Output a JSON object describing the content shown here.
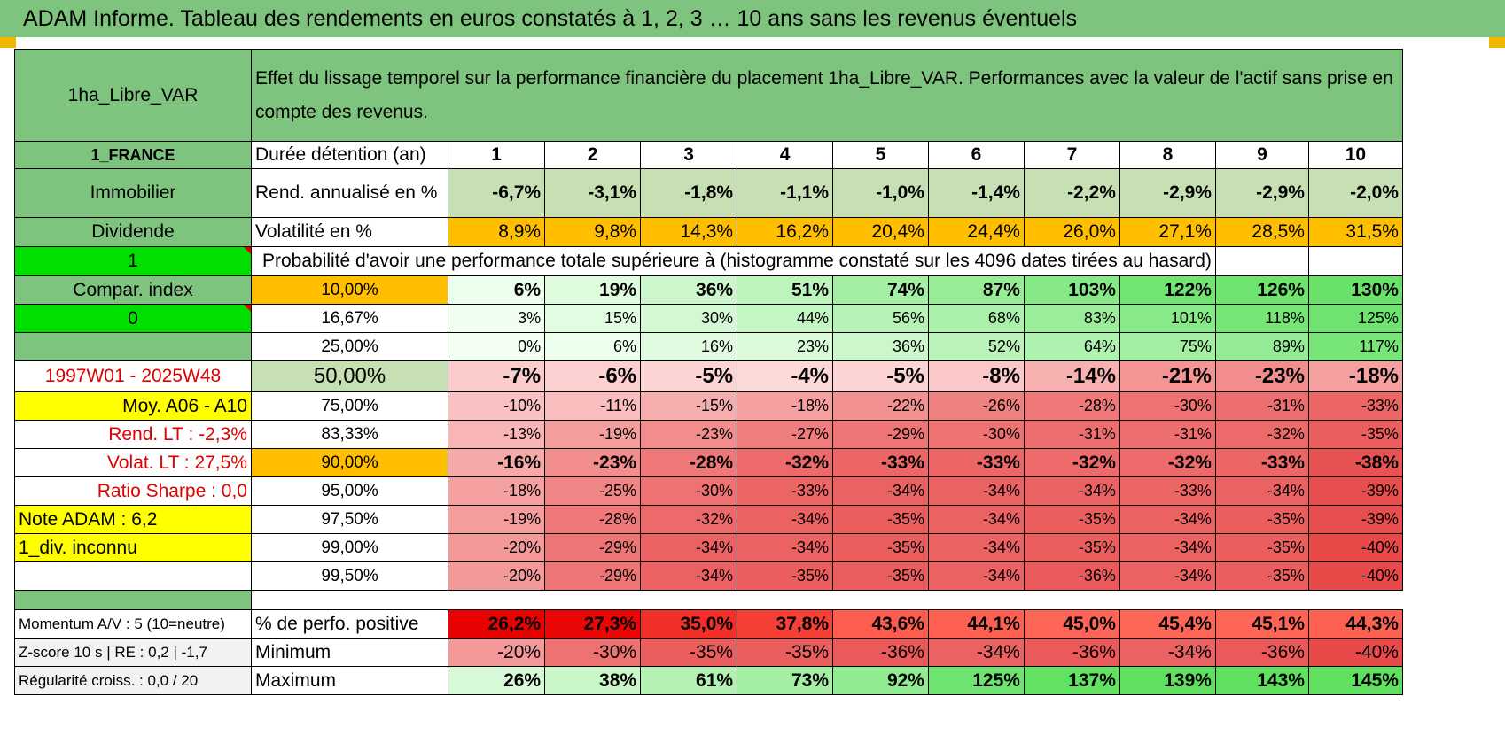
{
  "title": "ADAM Informe. Tableau des rendements en euros constatés à 1, 2, 3 … 10 ans sans les revenus éventuels",
  "header": {
    "asset": "1ha_Libre_VAR",
    "description": "Effet du lissage temporel sur la performance financière du placement 1ha_Libre_VAR. Performances avec la valeur de l'actif sans prise en compte des revenus."
  },
  "left_labels": {
    "country": "1_FRANCE",
    "category": "Immobilier",
    "income": "Dividende",
    "index_value": "1",
    "compar_index": "Compar. index",
    "zero_value": "0",
    "blank": "",
    "period": "1997W01 - 2025W48",
    "moy": "Moy. A06 - A10",
    "rend_lt": "Rend. LT :    -2,3%",
    "volat_lt": "Volat. LT :    27,5%",
    "sharpe": "Ratio Sharpe :     0,0",
    "note": "Note ADAM : 6,2",
    "div": "1_div. inconnu"
  },
  "row_labels": {
    "duration": "Durée détention (an)",
    "rend": "Rend. annualisé en %",
    "vol": "Volatilité en %",
    "prob": "Probabilité d'avoir une performance totale supérieure à (histogramme constaté sur les 4096 dates tirées au hasard)"
  },
  "years": [
    "1",
    "2",
    "3",
    "4",
    "5",
    "6",
    "7",
    "8",
    "9",
    "10"
  ],
  "rend": [
    "-6,7%",
    "-3,1%",
    "-1,8%",
    "-1,1%",
    "-1,0%",
    "-1,4%",
    "-2,2%",
    "-2,9%",
    "-2,9%",
    "-2,0%"
  ],
  "vol": [
    "8,9%",
    "9,8%",
    "14,3%",
    "16,2%",
    "20,4%",
    "24,4%",
    "26,0%",
    "27,1%",
    "28,5%",
    "31,5%"
  ],
  "percentiles": [
    {
      "p": "10,00%",
      "v": [
        "6%",
        "19%",
        "36%",
        "51%",
        "74%",
        "87%",
        "103%",
        "122%",
        "126%",
        "130%"
      ]
    },
    {
      "p": "16,67%",
      "v": [
        "3%",
        "15%",
        "30%",
        "44%",
        "56%",
        "68%",
        "83%",
        "101%",
        "118%",
        "125%"
      ]
    },
    {
      "p": "25,00%",
      "v": [
        "0%",
        "6%",
        "16%",
        "23%",
        "36%",
        "52%",
        "64%",
        "75%",
        "89%",
        "117%"
      ]
    },
    {
      "p": "50,00%",
      "v": [
        "-7%",
        "-6%",
        "-5%",
        "-4%",
        "-5%",
        "-8%",
        "-14%",
        "-21%",
        "-23%",
        "-18%"
      ]
    },
    {
      "p": "75,00%",
      "v": [
        "-10%",
        "-11%",
        "-15%",
        "-18%",
        "-22%",
        "-26%",
        "-28%",
        "-30%",
        "-31%",
        "-33%"
      ]
    },
    {
      "p": "83,33%",
      "v": [
        "-13%",
        "-19%",
        "-23%",
        "-27%",
        "-29%",
        "-30%",
        "-31%",
        "-31%",
        "-32%",
        "-35%"
      ]
    },
    {
      "p": "90,00%",
      "v": [
        "-16%",
        "-23%",
        "-28%",
        "-32%",
        "-33%",
        "-33%",
        "-32%",
        "-32%",
        "-33%",
        "-38%"
      ]
    },
    {
      "p": "95,00%",
      "v": [
        "-18%",
        "-25%",
        "-30%",
        "-33%",
        "-34%",
        "-34%",
        "-34%",
        "-33%",
        "-34%",
        "-39%"
      ]
    },
    {
      "p": "97,50%",
      "v": [
        "-19%",
        "-28%",
        "-32%",
        "-34%",
        "-35%",
        "-34%",
        "-35%",
        "-34%",
        "-35%",
        "-39%"
      ]
    },
    {
      "p": "99,00%",
      "v": [
        "-20%",
        "-29%",
        "-34%",
        "-34%",
        "-35%",
        "-34%",
        "-35%",
        "-34%",
        "-35%",
        "-40%"
      ]
    },
    {
      "p": "99,50%",
      "v": [
        "-20%",
        "-29%",
        "-34%",
        "-35%",
        "-35%",
        "-34%",
        "-36%",
        "-34%",
        "-35%",
        "-40%"
      ]
    }
  ],
  "bottom": [
    {
      "left": "Momentum A/V : 5 (10=neutre)",
      "label": "% de perfo. positive",
      "v": [
        "26,2%",
        "27,3%",
        "35,0%",
        "37,8%",
        "43,6%",
        "44,1%",
        "45,0%",
        "45,4%",
        "45,1%",
        "44,3%"
      ]
    },
    {
      "left": "Z-score 10 s | RE : 0,2 | -1,7",
      "label": "Minimum",
      "v": [
        "-20%",
        "-30%",
        "-35%",
        "-35%",
        "-36%",
        "-34%",
        "-36%",
        "-34%",
        "-36%",
        "-40%"
      ]
    },
    {
      "left": "Régularité croiss. : 0,0 / 20",
      "label": "Maximum",
      "v": [
        "26%",
        "38%",
        "61%",
        "73%",
        "92%",
        "125%",
        "137%",
        "139%",
        "143%",
        "145%"
      ]
    }
  ],
  "colors": {
    "header_green": "#7ec47e",
    "light_green": "#c6e0b4",
    "bright_green": "#00e000",
    "orange": "#ffbf00",
    "yellow": "#ffff00",
    "red_text": "#e00000"
  }
}
